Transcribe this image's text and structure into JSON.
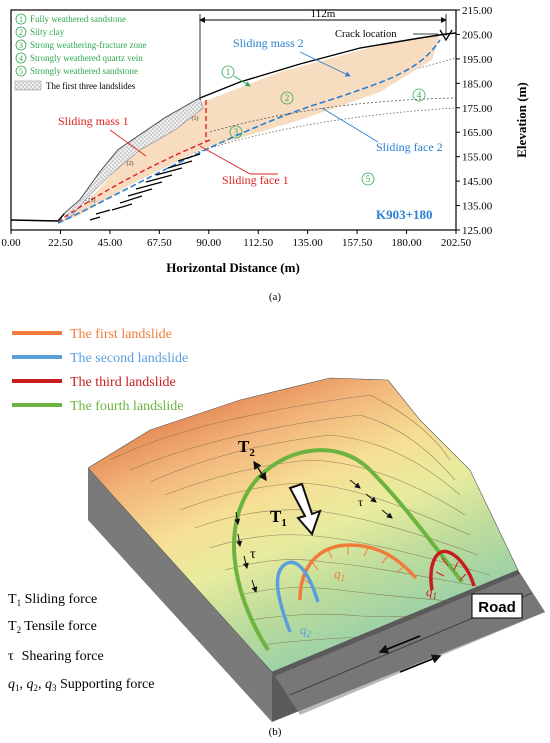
{
  "panel_a": {
    "caption": "(a)",
    "legend": [
      {
        "num": "1",
        "text": "Fully weathered sandstone"
      },
      {
        "num": "2",
        "text": "Silty clay"
      },
      {
        "num": "3",
        "text": "Strong weathering-fracture zone"
      },
      {
        "num": "4",
        "text": "Strongly weathered quartz vein"
      },
      {
        "num": "5",
        "text": "Strongly weathered sandstone"
      }
    ],
    "landslides_legend": "The first three landslides",
    "labels": {
      "dimension": "112m",
      "crack": "Crack location",
      "sliding_mass_1": "Sliding mass 1",
      "sliding_mass_2": "Sliding mass 2",
      "sliding_face_1": "Sliding face 1",
      "sliding_face_2": "Sliding face 2",
      "section": "K903+180",
      "layer_1": "1",
      "layer_2": "2",
      "layer_3": "3",
      "layer_4": "4",
      "layer_5": "5",
      "small_1": "(1)",
      "small_2": "(2)",
      "small_3": "(3)"
    },
    "x_axis": {
      "label": "Horizontal Distance (m)",
      "ticks": [
        "0.00",
        "22.50",
        "45.00",
        "67.50",
        "90.00",
        "112.50",
        "135.00",
        "157.50",
        "180.00",
        "202.50"
      ],
      "range": [
        0,
        202.5
      ]
    },
    "y_axis": {
      "label": "Elevation (m)",
      "ticks": [
        "215.00",
        "205.00",
        "195.00",
        "185.00",
        "175.00",
        "165.00",
        "155.00",
        "145.00",
        "135.00",
        "125.00"
      ],
      "range": [
        125,
        215
      ]
    },
    "colors": {
      "green": "#2fa84f",
      "red": "#e02020",
      "blue": "#2a7fd4",
      "mass_fill": "#f7dcc0"
    }
  },
  "panel_b": {
    "caption": "(b)",
    "legend": [
      {
        "text": "The first landslide",
        "color": "#f07c3c"
      },
      {
        "text": "The second landslide",
        "color": "#5a9fdc"
      },
      {
        "text": "The third landslide",
        "color": "#c81d1d"
      },
      {
        "text": "The fourth landslide",
        "color": "#6db33f"
      }
    ],
    "forces": [
      {
        "sym": "T",
        "sub": "1",
        "text": "Sliding force"
      },
      {
        "sym": "T",
        "sub": "2",
        "text": "Tensile force"
      },
      {
        "sym": "τ",
        "sub": "",
        "text": "Shearing force"
      },
      {
        "sym": "q",
        "sub": "1",
        "text": ", q"
      },
      {
        "sym": "",
        "sub": "",
        "text": ""
      }
    ],
    "force_support": "q1, q2, q3 Supporting force",
    "road": "Road",
    "map_labels": {
      "t1": "T",
      "t1_sub": "1",
      "t2": "T",
      "t2_sub": "2",
      "tau1": "τ",
      "tau2": "τ",
      "q1a": "q",
      "q1a_sub": "1",
      "q1b": "q",
      "q1b_sub": "1",
      "q2": "q",
      "q2_sub": "2"
    }
  }
}
